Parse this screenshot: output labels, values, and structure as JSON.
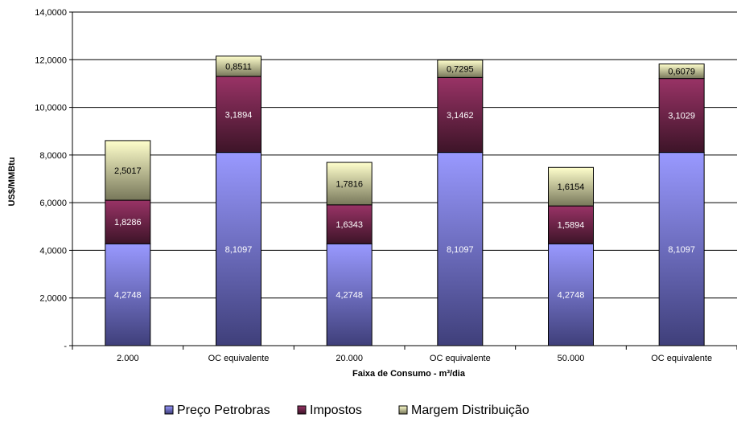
{
  "chart_data": {
    "type": "bar",
    "stacked": true,
    "title": "",
    "xlabel": "Faixa de Consumo - m³/dia",
    "ylabel": "US$/MMBtu",
    "ylim": [
      0,
      14
    ],
    "yticks": [
      0,
      2,
      4,
      6,
      8,
      10,
      12,
      14
    ],
    "ytick_labels": [
      "-",
      "2,0000",
      "4,0000",
      "6,0000",
      "8,0000",
      "10,0000",
      "12,0000",
      "14,0000"
    ],
    "categories": [
      "2.000",
      "OC equivalente",
      "20.000",
      "OC equivalente",
      "50.000",
      "OC equivalente"
    ],
    "series": [
      {
        "name": "Preço Petrobras",
        "values": [
          4.2748,
          8.1097,
          4.2748,
          8.1097,
          4.2748,
          8.1097
        ],
        "labels": [
          "4,2748",
          "8,1097",
          "4,2748",
          "8,1097",
          "4,2748",
          "8,1097"
        ],
        "color_top": "#9999ff",
        "color_bottom": "#3f3f7a",
        "label_color": "#ffffff"
      },
      {
        "name": "Impostos",
        "values": [
          1.8286,
          3.1894,
          1.6343,
          3.1462,
          1.5894,
          3.1029
        ],
        "labels": [
          "1,8286",
          "3,1894",
          "1,6343",
          "3,1462",
          "1,5894",
          "3,1029"
        ],
        "color_top": "#993366",
        "color_bottom": "#3d1428",
        "label_color": "#ffffff"
      },
      {
        "name": "Margem Distribuição",
        "values": [
          2.5017,
          0.8511,
          1.7816,
          0.7295,
          1.6154,
          0.6079
        ],
        "labels": [
          "2,5017",
          "0,8511",
          "1,7816",
          "0,7295",
          "1,6154",
          "0,6079"
        ],
        "color_top": "#ffffcc",
        "color_bottom": "#77775a",
        "label_color": "#000000"
      }
    ],
    "grid": true,
    "legend_position": "bottom"
  }
}
